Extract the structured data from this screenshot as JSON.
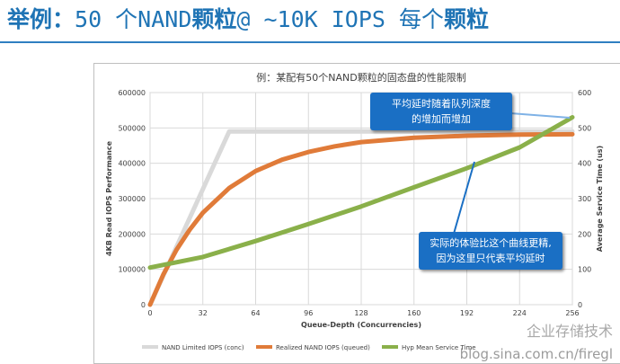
{
  "slide": {
    "title_prefix": "举例：",
    "title_mid1": "50 个NAND",
    "title_cjk1": "颗粒",
    "title_mid2": "@ ~10K IOPS 每个",
    "title_cjk2": "颗粒"
  },
  "chart_data": {
    "type": "line",
    "title": "例：某配有50个NAND颗粒的固态盘的性能限制",
    "xlabel": "Queue-Depth (Concurrencies)",
    "ylabel": "4KB Read IOPS Performance",
    "y2label": "Average Service Time (us)",
    "xlim": [
      0,
      256
    ],
    "ylim": [
      0,
      600000
    ],
    "y2lim": [
      0,
      600
    ],
    "x_ticks": [
      "0",
      "32",
      "64",
      "96",
      "128",
      "160",
      "192",
      "224",
      "256"
    ],
    "y_ticks": [
      "0",
      "100000",
      "200000",
      "300000",
      "400000",
      "500000",
      "600000"
    ],
    "y2_ticks": [
      "0",
      "100",
      "200",
      "300",
      "400",
      "500",
      "600"
    ],
    "grid": true,
    "legend_position": "bottom",
    "series": [
      {
        "name": "NAND Limited IOPS (conc)",
        "axis": "left",
        "color": "#d9d9d9",
        "x": [
          0,
          48,
          256
        ],
        "y": [
          0,
          490000,
          490000
        ]
      },
      {
        "name": "Realized NAND IOPS (queued)",
        "axis": "left",
        "color": "#e07b39",
        "x": [
          0,
          8,
          16,
          24,
          32,
          48,
          64,
          80,
          96,
          112,
          128,
          160,
          192,
          224,
          256
        ],
        "y": [
          0,
          85000,
          155000,
          212000,
          260000,
          330000,
          378000,
          410000,
          432000,
          448000,
          460000,
          472000,
          478000,
          481000,
          482000
        ]
      },
      {
        "name": "Hyp Mean Service Time",
        "axis": "right",
        "color": "#8ab04a",
        "x": [
          0,
          32,
          64,
          96,
          128,
          160,
          192,
          224,
          256
        ],
        "y": [
          105,
          135,
          180,
          228,
          278,
          332,
          386,
          445,
          530
        ]
      }
    ]
  },
  "callouts": {
    "top_line1": "平均延时随着队列深度",
    "top_line2": "的增加而增加",
    "bottom_line1": "实际的体验比这个曲线更精,",
    "bottom_line2": "因为这里只代表平均延时"
  },
  "watermark": {
    "brand": "企业存储技术",
    "url": "blog.sina.com.cn/firegl"
  }
}
